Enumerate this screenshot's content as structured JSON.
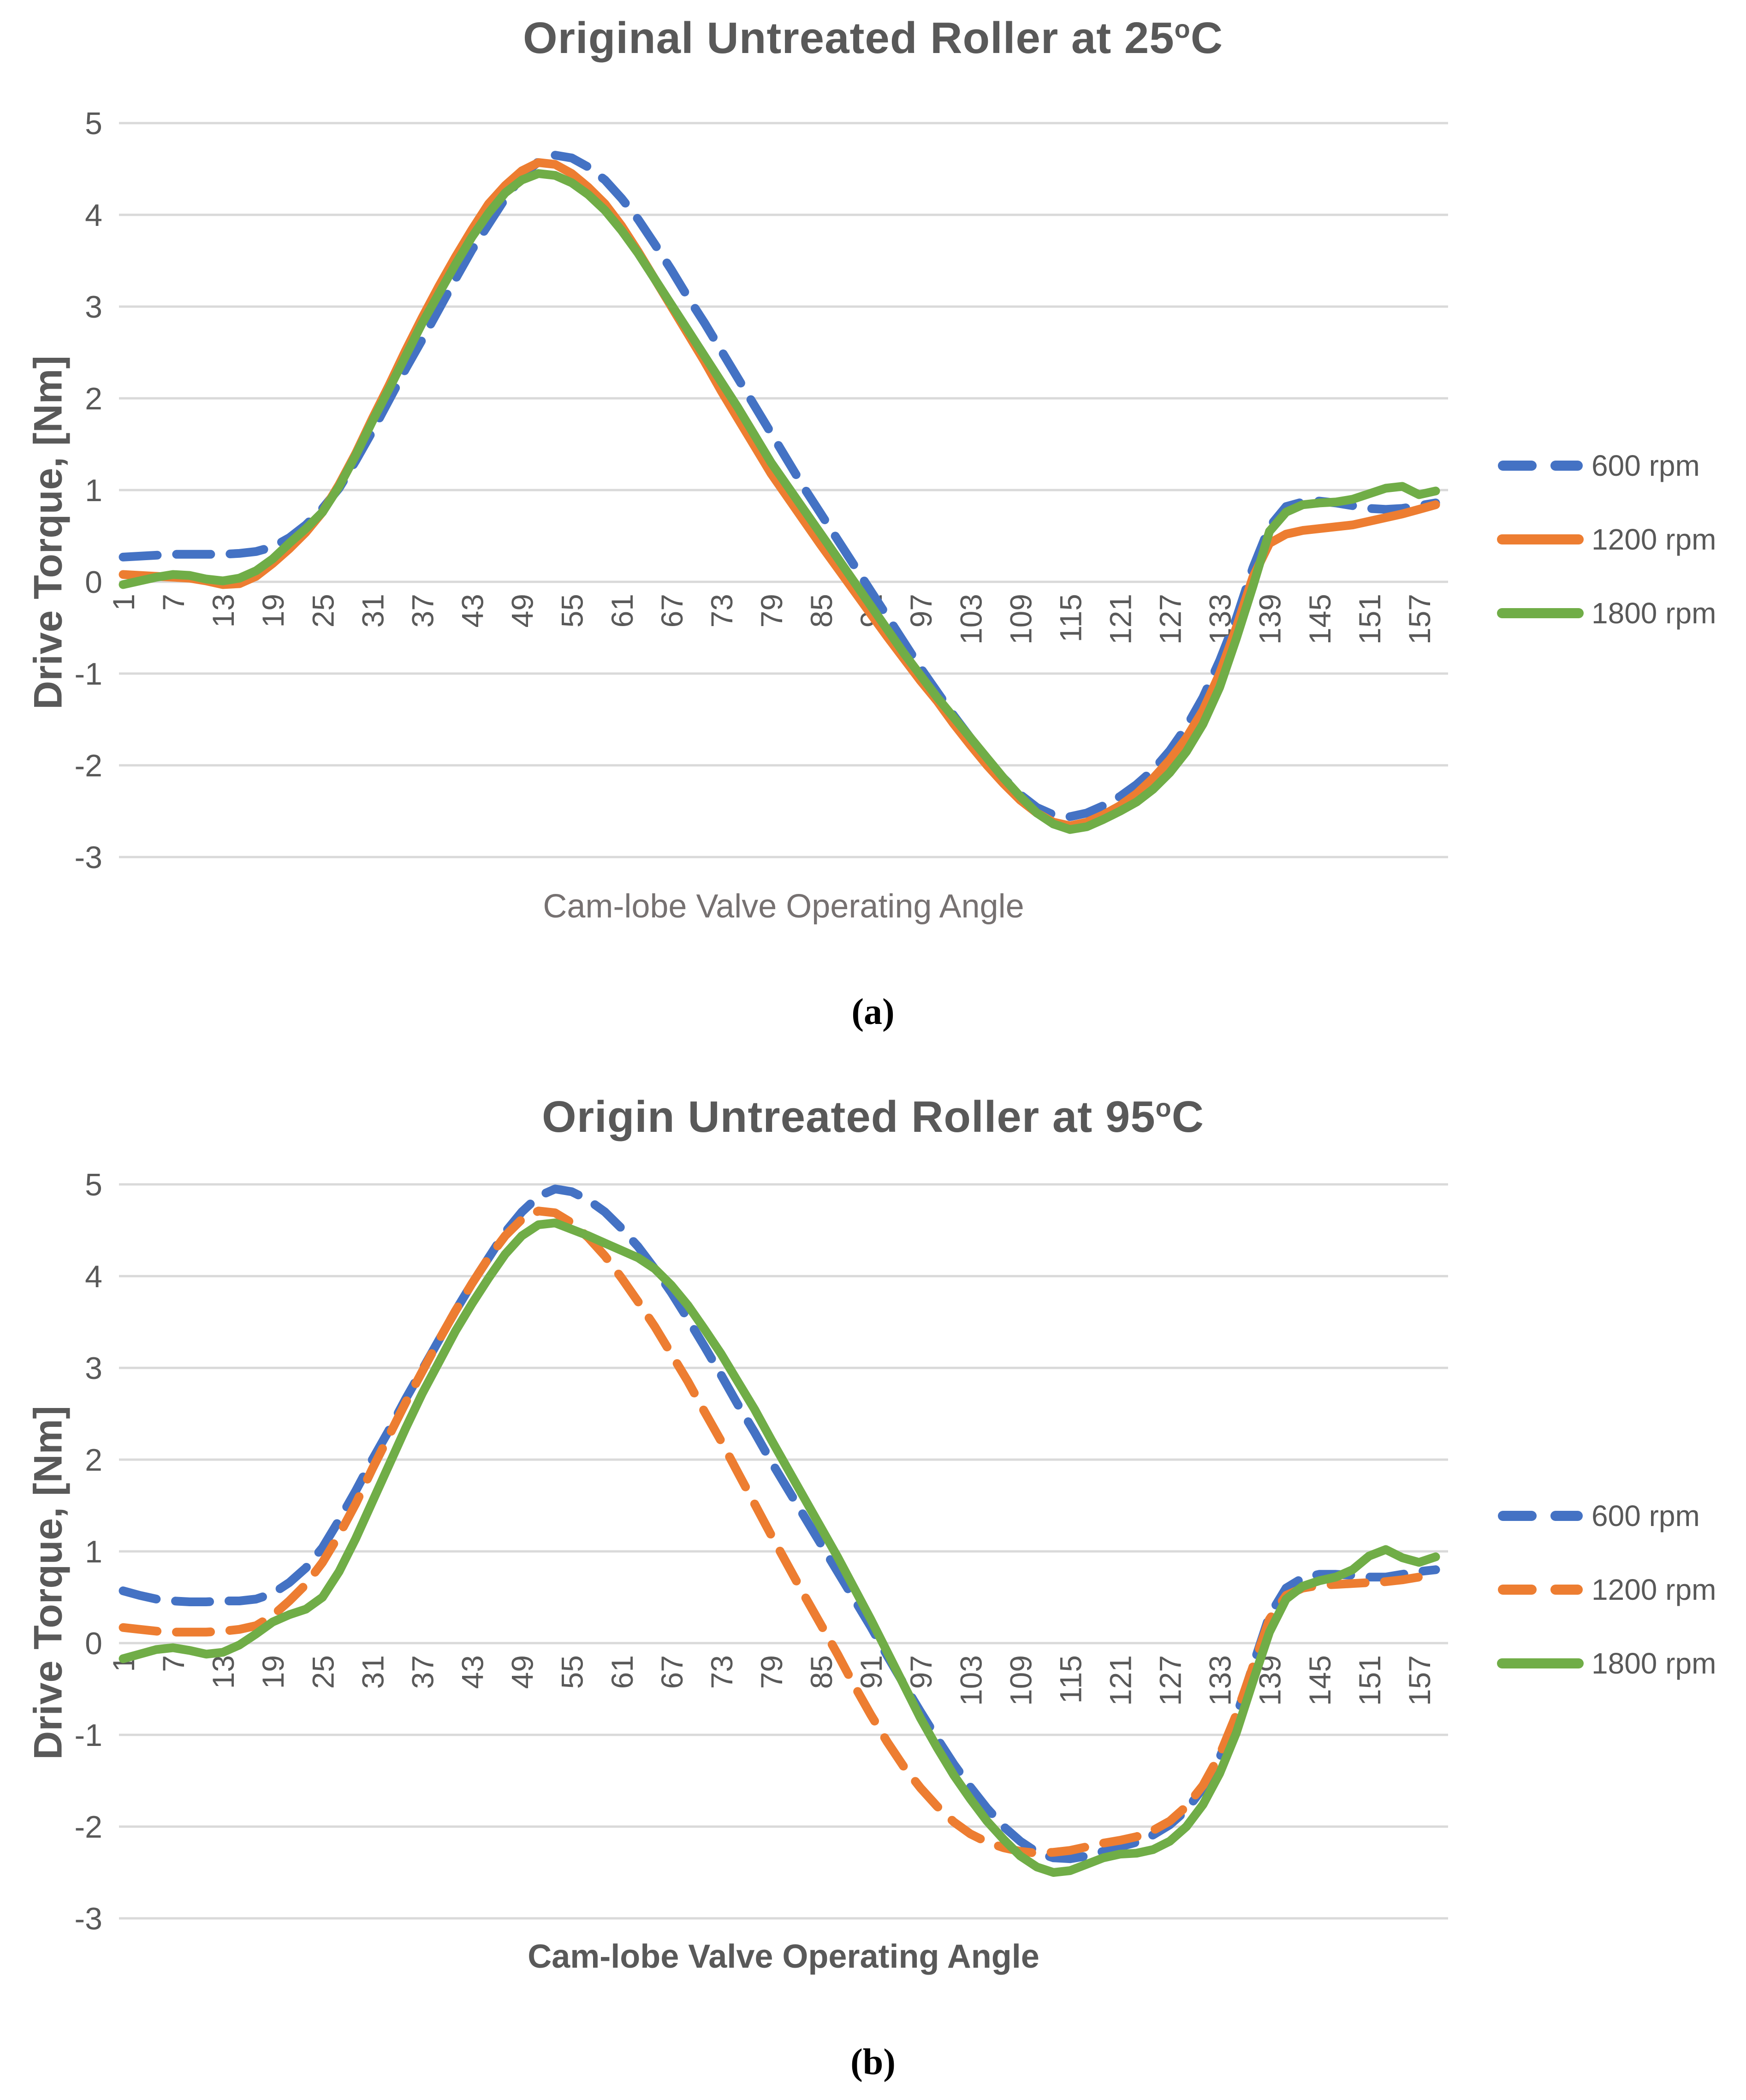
{
  "chart_data": [
    {
      "type": "line",
      "title_text": "Original Untreated Roller at 25",
      "title_sup": "o",
      "title_end": "C",
      "xlabel": "Cam-lobe Valve Operating Angle",
      "ylabel": "Drive Torque, [Nm]",
      "caption": "(a)",
      "x_start": 1,
      "x_step": 2,
      "x_ticks": [
        1,
        7,
        13,
        19,
        25,
        31,
        37,
        43,
        49,
        55,
        61,
        67,
        73,
        79,
        85,
        91,
        97,
        103,
        109,
        115,
        121,
        127,
        133,
        139,
        145,
        151,
        157
      ],
      "y_ticks": [
        5,
        4,
        3,
        2,
        1,
        0,
        -1,
        -2,
        -3
      ],
      "ylim": [
        -3,
        5
      ],
      "grid": true,
      "legend_position": "right",
      "series": [
        {
          "name": "600 rpm",
          "color": "#4472C4",
          "dashed": true,
          "values": [
            0.27,
            0.28,
            0.29,
            0.3,
            0.3,
            0.3,
            0.3,
            0.31,
            0.33,
            0.38,
            0.48,
            0.62,
            0.8,
            1.02,
            1.32,
            1.64,
            1.98,
            2.32,
            2.64,
            2.97,
            3.3,
            3.62,
            3.9,
            4.18,
            4.42,
            4.58,
            4.65,
            4.62,
            4.52,
            4.38,
            4.18,
            3.95,
            3.68,
            3.4,
            3.1,
            2.82,
            2.52,
            2.22,
            1.92,
            1.62,
            1.32,
            1.02,
            0.74,
            0.46,
            0.18,
            -0.1,
            -0.38,
            -0.66,
            -0.94,
            -1.2,
            -1.46,
            -1.7,
            -1.94,
            -2.14,
            -2.32,
            -2.46,
            -2.54,
            -2.56,
            -2.52,
            -2.44,
            -2.34,
            -2.21,
            -2.05,
            -1.84,
            -1.58,
            -1.26,
            -0.86,
            -0.4,
            0.15,
            0.6,
            0.82,
            0.87,
            0.88,
            0.86,
            0.83,
            0.8,
            0.79,
            0.8,
            0.83,
            0.86
          ]
        },
        {
          "name": "1200 rpm",
          "color": "#ED7D31",
          "dashed": false,
          "values": [
            0.08,
            0.07,
            0.06,
            0.05,
            0.04,
            0.01,
            -0.03,
            -0.02,
            0.06,
            0.2,
            0.36,
            0.54,
            0.76,
            1.06,
            1.4,
            1.78,
            2.14,
            2.52,
            2.88,
            3.22,
            3.54,
            3.84,
            4.12,
            4.32,
            4.48,
            4.57,
            4.55,
            4.45,
            4.3,
            4.12,
            3.88,
            3.6,
            3.3,
            3.0,
            2.7,
            2.4,
            2.08,
            1.78,
            1.48,
            1.18,
            0.92,
            0.66,
            0.4,
            0.15,
            -0.1,
            -0.35,
            -0.6,
            -0.84,
            -1.08,
            -1.3,
            -1.55,
            -1.78,
            -2.0,
            -2.2,
            -2.38,
            -2.52,
            -2.62,
            -2.66,
            -2.62,
            -2.54,
            -2.44,
            -2.31,
            -2.14,
            -1.94,
            -1.7,
            -1.4,
            -1.0,
            -0.5,
            0.05,
            0.42,
            0.52,
            0.56,
            0.58,
            0.6,
            0.62,
            0.66,
            0.7,
            0.74,
            0.79,
            0.84
          ]
        },
        {
          "name": "1800 rpm",
          "color": "#70AD47",
          "dashed": false,
          "values": [
            -0.03,
            0.01,
            0.05,
            0.08,
            0.07,
            0.03,
            0.01,
            0.04,
            0.12,
            0.25,
            0.42,
            0.58,
            0.76,
            1.04,
            1.38,
            1.75,
            2.1,
            2.46,
            2.82,
            3.14,
            3.46,
            3.76,
            4.02,
            4.24,
            4.38,
            4.45,
            4.43,
            4.35,
            4.22,
            4.05,
            3.83,
            3.58,
            3.3,
            3.02,
            2.74,
            2.46,
            2.18,
            1.9,
            1.6,
            1.3,
            1.04,
            0.78,
            0.52,
            0.26,
            0.0,
            -0.26,
            -0.52,
            -0.78,
            -1.02,
            -1.26,
            -1.48,
            -1.7,
            -1.92,
            -2.14,
            -2.34,
            -2.52,
            -2.64,
            -2.7,
            -2.67,
            -2.59,
            -2.5,
            -2.4,
            -2.26,
            -2.08,
            -1.85,
            -1.55,
            -1.15,
            -0.62,
            -0.05,
            0.55,
            0.76,
            0.84,
            0.86,
            0.87,
            0.9,
            0.96,
            1.02,
            1.04,
            0.95,
            0.99
          ]
        }
      ]
    },
    {
      "type": "line",
      "title_text": "Origin Untreated Roller at 95",
      "title_sup": "o",
      "title_end": "C",
      "xlabel": "Cam-lobe Valve Operating Angle",
      "ylabel": "Drive Torque, [Nm]",
      "caption": "(b)",
      "x_start": 1,
      "x_step": 2,
      "x_ticks": [
        1,
        7,
        13,
        19,
        25,
        31,
        37,
        43,
        49,
        55,
        61,
        67,
        73,
        79,
        85,
        91,
        97,
        103,
        109,
        115,
        121,
        127,
        133,
        139,
        145,
        151,
        157
      ],
      "y_ticks": [
        5,
        4,
        3,
        2,
        1,
        0,
        -1,
        -2,
        -3
      ],
      "ylim": [
        -3,
        5
      ],
      "grid": true,
      "legend_position": "right",
      "series": [
        {
          "name": "600 rpm",
          "color": "#4472C4",
          "dashed": true,
          "values": [
            0.57,
            0.52,
            0.48,
            0.46,
            0.45,
            0.45,
            0.46,
            0.46,
            0.48,
            0.54,
            0.66,
            0.82,
            1.04,
            1.34,
            1.66,
            2.0,
            2.32,
            2.66,
            2.98,
            3.3,
            3.62,
            3.92,
            4.2,
            4.48,
            4.7,
            4.87,
            4.95,
            4.92,
            4.83,
            4.7,
            4.52,
            4.32,
            4.08,
            3.82,
            3.53,
            3.23,
            2.92,
            2.6,
            2.3,
            1.98,
            1.68,
            1.38,
            1.08,
            0.78,
            0.48,
            0.18,
            -0.14,
            -0.45,
            -0.75,
            -1.04,
            -1.32,
            -1.57,
            -1.8,
            -2.0,
            -2.16,
            -2.28,
            -2.34,
            -2.35,
            -2.32,
            -2.27,
            -2.22,
            -2.17,
            -2.09,
            -1.98,
            -1.82,
            -1.58,
            -1.25,
            -0.8,
            -0.25,
            0.3,
            0.6,
            0.71,
            0.75,
            0.75,
            0.74,
            0.72,
            0.72,
            0.75,
            0.78,
            0.8
          ]
        },
        {
          "name": "1200 rpm",
          "color": "#ED7D31",
          "dashed": true,
          "values": [
            0.17,
            0.15,
            0.13,
            0.12,
            0.12,
            0.12,
            0.13,
            0.15,
            0.19,
            0.3,
            0.46,
            0.64,
            0.88,
            1.18,
            1.52,
            1.9,
            2.26,
            2.62,
            2.96,
            3.3,
            3.62,
            3.92,
            4.2,
            4.44,
            4.62,
            4.71,
            4.69,
            4.58,
            4.42,
            4.22,
            3.98,
            3.72,
            3.45,
            3.15,
            2.85,
            2.52,
            2.2,
            1.86,
            1.52,
            1.18,
            0.85,
            0.52,
            0.2,
            -0.12,
            -0.46,
            -0.78,
            -1.08,
            -1.35,
            -1.58,
            -1.78,
            -1.95,
            -2.08,
            -2.17,
            -2.23,
            -2.27,
            -2.29,
            -2.28,
            -2.26,
            -2.22,
            -2.18,
            -2.15,
            -2.11,
            -2.04,
            -1.94,
            -1.78,
            -1.55,
            -1.22,
            -0.78,
            -0.26,
            0.26,
            0.52,
            0.6,
            0.63,
            0.64,
            0.65,
            0.66,
            0.67,
            0.69,
            0.72,
            0.74
          ]
        },
        {
          "name": "1800 rpm",
          "color": "#70AD47",
          "dashed": false,
          "values": [
            -0.17,
            -0.12,
            -0.07,
            -0.05,
            -0.08,
            -0.12,
            -0.1,
            -0.02,
            0.1,
            0.23,
            0.31,
            0.37,
            0.5,
            0.78,
            1.14,
            1.54,
            1.94,
            2.34,
            2.72,
            3.06,
            3.4,
            3.7,
            3.98,
            4.24,
            4.44,
            4.56,
            4.58,
            4.51,
            4.44,
            4.36,
            4.28,
            4.2,
            4.08,
            3.9,
            3.68,
            3.42,
            3.15,
            2.85,
            2.55,
            2.22,
            1.9,
            1.58,
            1.26,
            0.94,
            0.6,
            0.26,
            -0.1,
            -0.46,
            -0.82,
            -1.14,
            -1.44,
            -1.7,
            -1.94,
            -2.14,
            -2.32,
            -2.44,
            -2.5,
            -2.48,
            -2.41,
            -2.34,
            -2.3,
            -2.29,
            -2.25,
            -2.16,
            -2.0,
            -1.76,
            -1.42,
            -0.98,
            -0.42,
            0.12,
            0.48,
            0.62,
            0.68,
            0.72,
            0.8,
            0.95,
            1.02,
            0.93,
            0.88,
            0.94
          ]
        }
      ]
    }
  ],
  "style": {
    "grid_color": "#D9D9D9",
    "text_color": "#595959",
    "accent_blue": "#4472C4",
    "accent_orange": "#ED7D31",
    "accent_green": "#70AD47"
  }
}
